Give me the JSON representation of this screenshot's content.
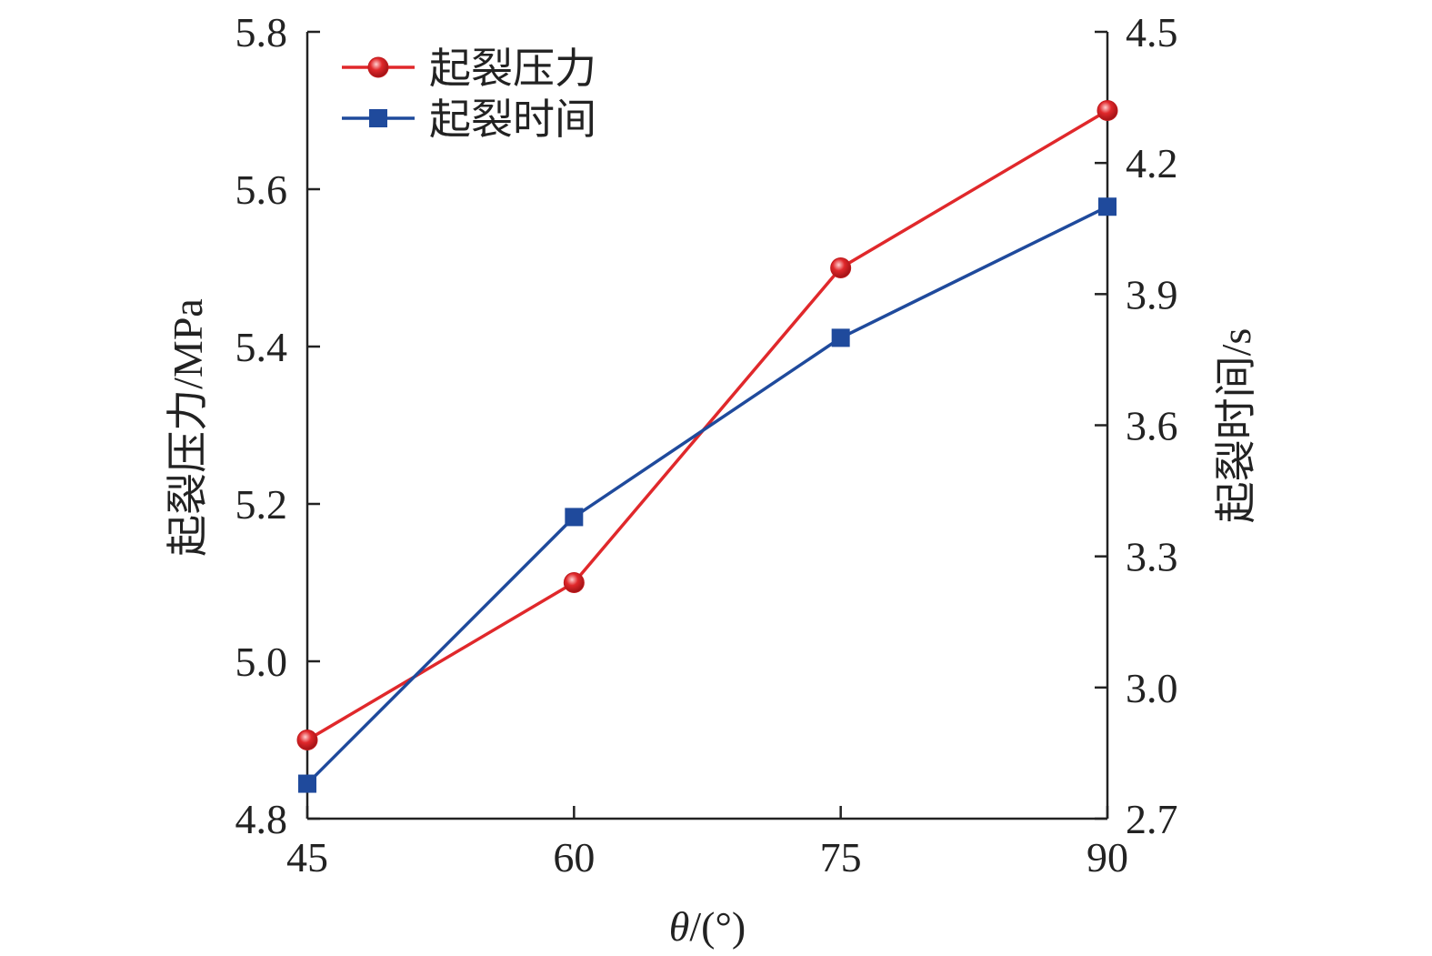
{
  "chart_data": {
    "type": "line",
    "xlabel_var": "θ",
    "xlabel_unit": "/(°)",
    "ylabel_left": "起裂压力/MPa",
    "ylabel_right": "起裂时间/s",
    "x": [
      45,
      60,
      75,
      90
    ],
    "x_ticks": [
      "45",
      "60",
      "75",
      "90"
    ],
    "xlim": [
      45,
      90
    ],
    "ylim_left": [
      4.8,
      5.8
    ],
    "y_ticks_left": [
      "4.8",
      "5.0",
      "5.2",
      "5.4",
      "5.6",
      "5.8"
    ],
    "ylim_right": [
      2.7,
      4.5
    ],
    "y_ticks_right": [
      "2.7",
      "3.0",
      "3.3",
      "3.6",
      "3.9",
      "4.2",
      "4.5"
    ],
    "grid": false,
    "legend_position": "top-left",
    "series": [
      {
        "name": "起裂压力",
        "axis": "left",
        "color": "#e0282b",
        "marker": "circle",
        "values": [
          4.9,
          5.1,
          5.5,
          5.7
        ]
      },
      {
        "name": "起裂时间",
        "axis": "right",
        "color": "#1f4a9c",
        "marker": "square",
        "values": [
          2.78,
          3.39,
          3.8,
          4.1
        ]
      }
    ]
  }
}
